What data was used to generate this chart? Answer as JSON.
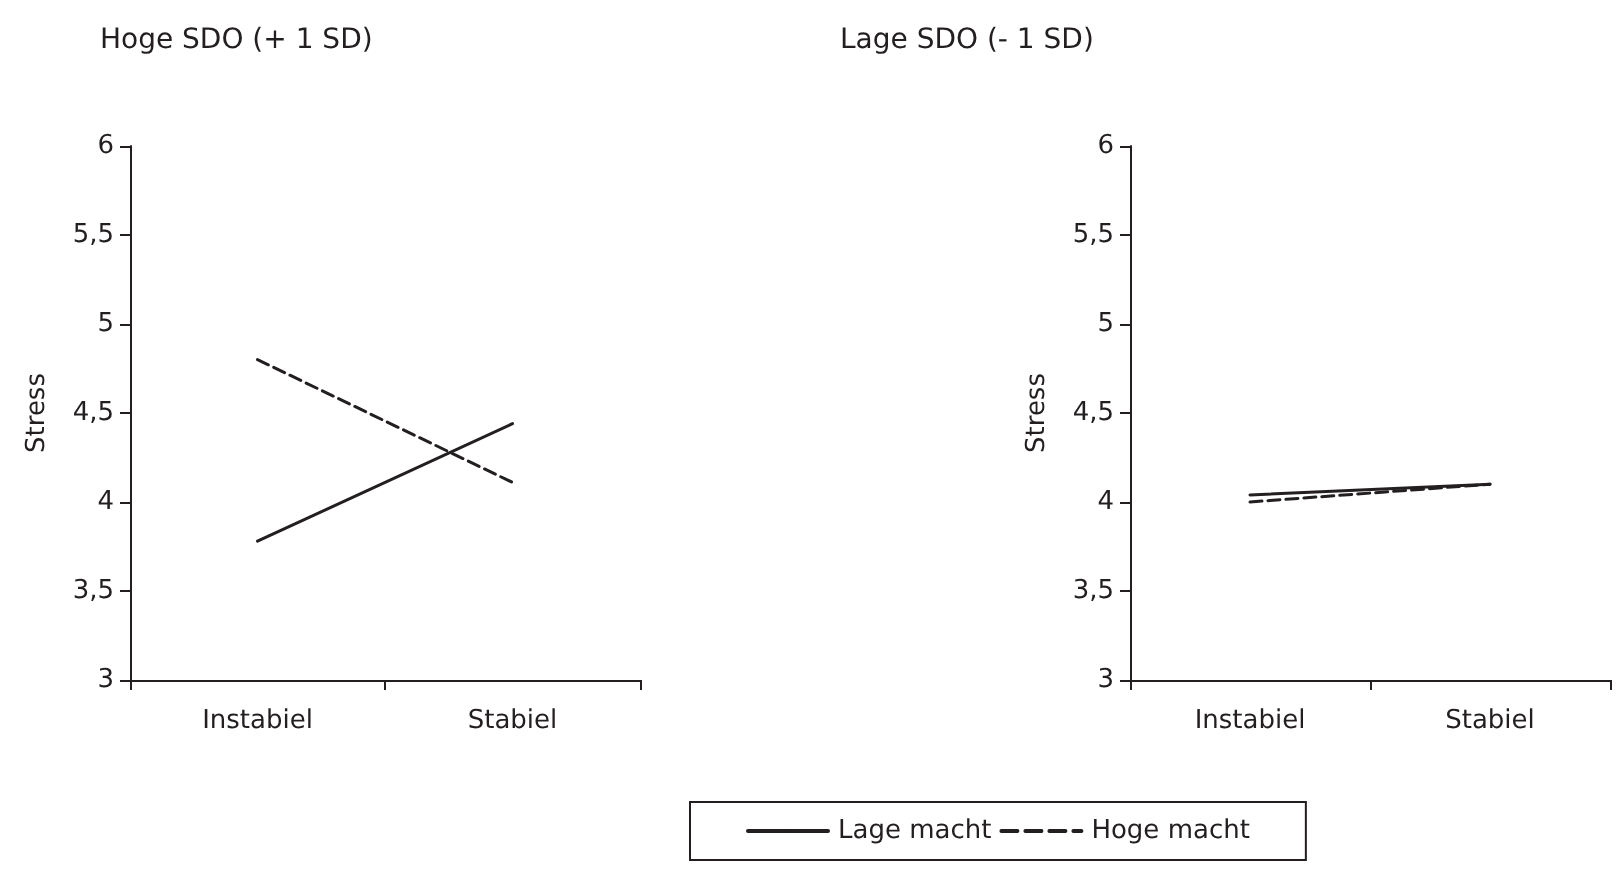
{
  "chart_data": [
    {
      "type": "line",
      "title": "Hoge SDO (+ 1 SD)",
      "ylabel": "Stress",
      "categories": [
        "Instabiel",
        "Stabiel"
      ],
      "ylim": [
        3,
        6
      ],
      "yticks": [
        3,
        {
          "value": 3.5,
          "label": "3,5"
        },
        4,
        {
          "value": 4.5,
          "label": "4,5"
        },
        5,
        {
          "value": 5.5,
          "label": "5,5"
        },
        6
      ],
      "grid": false,
      "legend": false,
      "marker": "none",
      "series": [
        {
          "color": "#231f20",
          "line_style": "solid",
          "values": [
            3.78,
            4.44
          ]
        },
        {
          "color": "#231f20",
          "line_style": "dashed",
          "values": [
            4.8,
            4.11
          ]
        }
      ]
    },
    {
      "type": "line",
      "title": "Lage SDO (- 1 SD)",
      "ylabel": "Stress",
      "categories": [
        "Instabiel",
        "Stabiel"
      ],
      "ylim": [
        3,
        6
      ],
      "yticks": [
        3,
        {
          "value": 3.5,
          "label": "3,5"
        },
        4,
        {
          "value": 4.5,
          "label": "4,5"
        },
        5,
        {
          "value": 5.5,
          "label": "5,5"
        },
        6
      ],
      "grid": false,
      "legend": "bottom",
      "marker": "none",
      "series": [
        {
          "name": "Lage macht",
          "color": "#231f20",
          "line_style": "solid",
          "values": [
            4.04,
            4.1
          ]
        },
        {
          "name": "Hoge macht",
          "color": "#231f20",
          "line_style": "dashed",
          "values": [
            4.0,
            4.1
          ]
        }
      ]
    }
  ]
}
